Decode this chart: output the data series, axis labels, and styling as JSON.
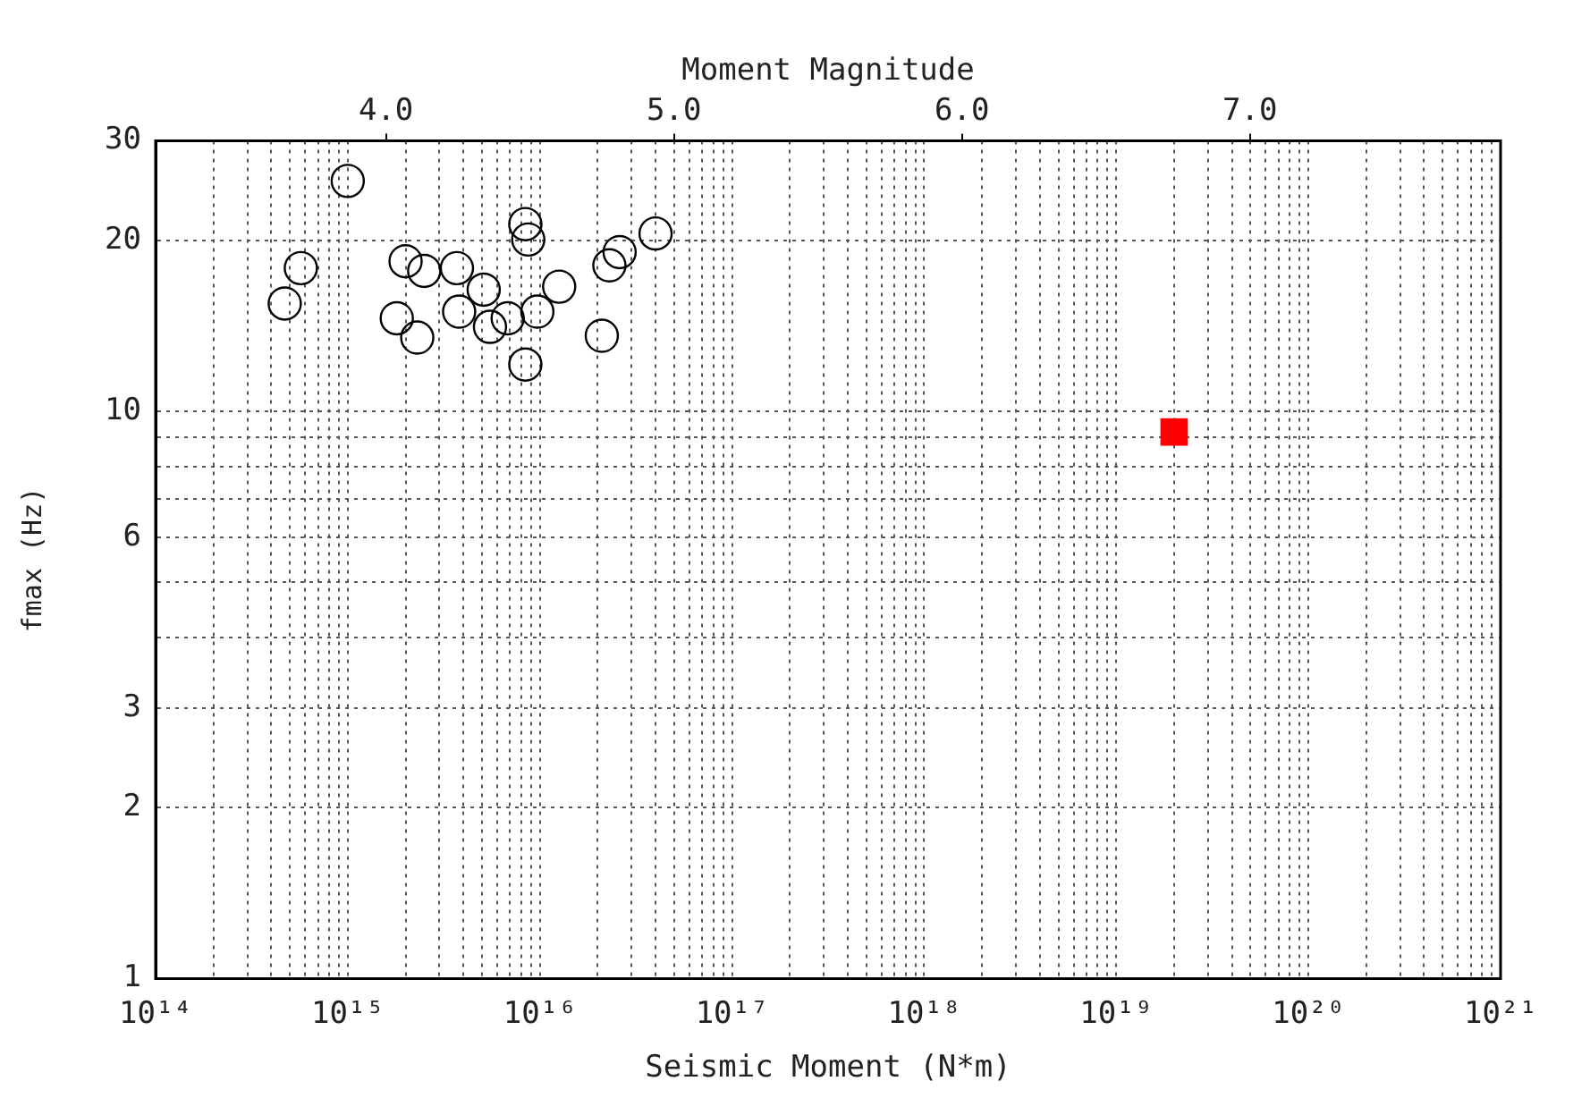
{
  "chart_data": {
    "type": "scatter",
    "xlabel": "Seismic Moment (N*m)",
    "ylabel": "fmax (Hz)",
    "x2label": "Moment Magnitude",
    "log": "xy",
    "grid": true,
    "legend": false,
    "xlim": [
      100000000000000.0,
      1e+21
    ],
    "xticks": [
      {
        "value": 100000000000000.0,
        "label": "10¹⁴"
      },
      {
        "value": 200000000000000.0,
        "label": null
      },
      {
        "value": 300000000000000.0,
        "label": null
      },
      {
        "value": 400000000000000.0,
        "label": null
      },
      {
        "value": 500000000000000.0,
        "label": null
      },
      {
        "value": 600000000000000.0,
        "label": null
      },
      {
        "value": 700000000000000.0,
        "label": null
      },
      {
        "value": 800000000000000.0,
        "label": null
      },
      {
        "value": 900000000000000.0,
        "label": null
      },
      {
        "value": 1000000000000000.0,
        "label": "10¹⁵"
      },
      {
        "value": 2000000000000000.0,
        "label": null
      },
      {
        "value": 3000000000000000.0,
        "label": null
      },
      {
        "value": 4000000000000000.0,
        "label": null
      },
      {
        "value": 5000000000000000.0,
        "label": null
      },
      {
        "value": 6000000000000000.0,
        "label": null
      },
      {
        "value": 7000000000000000.0,
        "label": null
      },
      {
        "value": 8000000000000000.0,
        "label": null
      },
      {
        "value": 9000000000000000.0,
        "label": null
      },
      {
        "value": 1e+16,
        "label": "10¹⁶"
      },
      {
        "value": 2e+16,
        "label": null
      },
      {
        "value": 3e+16,
        "label": null
      },
      {
        "value": 4e+16,
        "label": null
      },
      {
        "value": 5e+16,
        "label": null
      },
      {
        "value": 6e+16,
        "label": null
      },
      {
        "value": 7e+16,
        "label": null
      },
      {
        "value": 8e+16,
        "label": null
      },
      {
        "value": 9e+16,
        "label": null
      },
      {
        "value": 1e+17,
        "label": "10¹⁷"
      },
      {
        "value": 2e+17,
        "label": null
      },
      {
        "value": 3e+17,
        "label": null
      },
      {
        "value": 4e+17,
        "label": null
      },
      {
        "value": 5e+17,
        "label": null
      },
      {
        "value": 6e+17,
        "label": null
      },
      {
        "value": 7e+17,
        "label": null
      },
      {
        "value": 8e+17,
        "label": null
      },
      {
        "value": 9e+17,
        "label": null
      },
      {
        "value": 1e+18,
        "label": "10¹⁸"
      },
      {
        "value": 2e+18,
        "label": null
      },
      {
        "value": 3e+18,
        "label": null
      },
      {
        "value": 4e+18,
        "label": null
      },
      {
        "value": 5e+18,
        "label": null
      },
      {
        "value": 6e+18,
        "label": null
      },
      {
        "value": 7e+18,
        "label": null
      },
      {
        "value": 8e+18,
        "label": null
      },
      {
        "value": 9e+18,
        "label": null
      },
      {
        "value": 1e+19,
        "label": "10¹⁹"
      },
      {
        "value": 2e+19,
        "label": null
      },
      {
        "value": 3e+19,
        "label": null
      },
      {
        "value": 4e+19,
        "label": null
      },
      {
        "value": 5e+19,
        "label": null
      },
      {
        "value": 6e+19,
        "label": null
      },
      {
        "value": 7e+19,
        "label": null
      },
      {
        "value": 8e+19,
        "label": null
      },
      {
        "value": 9e+19,
        "label": null
      },
      {
        "value": 1e+20,
        "label": "10²⁰"
      },
      {
        "value": 2e+20,
        "label": null
      },
      {
        "value": 3e+20,
        "label": null
      },
      {
        "value": 4e+20,
        "label": null
      },
      {
        "value": 5e+20,
        "label": null
      },
      {
        "value": 6e+20,
        "label": null
      },
      {
        "value": 7e+20,
        "label": null
      },
      {
        "value": 8e+20,
        "label": null
      },
      {
        "value": 9e+20,
        "label": null
      },
      {
        "value": 1e+21,
        "label": "10²¹"
      }
    ],
    "x2lim": [
      3.2,
      7.87
    ],
    "x2ticks": [
      {
        "value": 4,
        "label": "4.0"
      },
      {
        "value": 5,
        "label": "5.0"
      },
      {
        "value": 6,
        "label": "6.0"
      },
      {
        "value": 7,
        "label": "7.0"
      }
    ],
    "ylim": [
      1,
      30
    ],
    "yticks": [
      1,
      2,
      3,
      {
        "value": 4,
        "label": null
      },
      {
        "value": 5,
        "label": null
      },
      6,
      {
        "value": 7,
        "label": null
      },
      {
        "value": 8,
        "label": null
      },
      {
        "value": 9,
        "label": null
      },
      10,
      20,
      30
    ],
    "series": [
      {
        "color": "#000000",
        "marker": "circle",
        "x": [
          1000000000000000.0,
          570000000000000.0,
          470000000000000.0,
          2000000000000000.0,
          2500000000000000.0,
          3700000000000000.0,
          5100000000000000.0,
          3800000000000000.0,
          1800000000000000.0,
          2300000000000000.0,
          5500000000000000.0,
          6800000000000000.0,
          8400000000000000.0,
          8700000000000000.0,
          8400000000000000.0,
          9700000000000000.0,
          1.26e+16,
          2.3e+16,
          4e+16,
          2.1e+16,
          2.6e+16
        ],
        "values": [
          25.5,
          17.9,
          15.5,
          18.4,
          17.7,
          17.9,
          16.4,
          15.0,
          14.6,
          13.5,
          14.1,
          14.6,
          21.4,
          20.1,
          12.1,
          15.0,
          16.6,
          18.1,
          20.6,
          13.6,
          19.1
        ]
      },
      {
        "color": "#ff0000",
        "marker": "square",
        "x": [
          2e+19
        ],
        "values": [
          9.2
        ]
      }
    ]
  }
}
